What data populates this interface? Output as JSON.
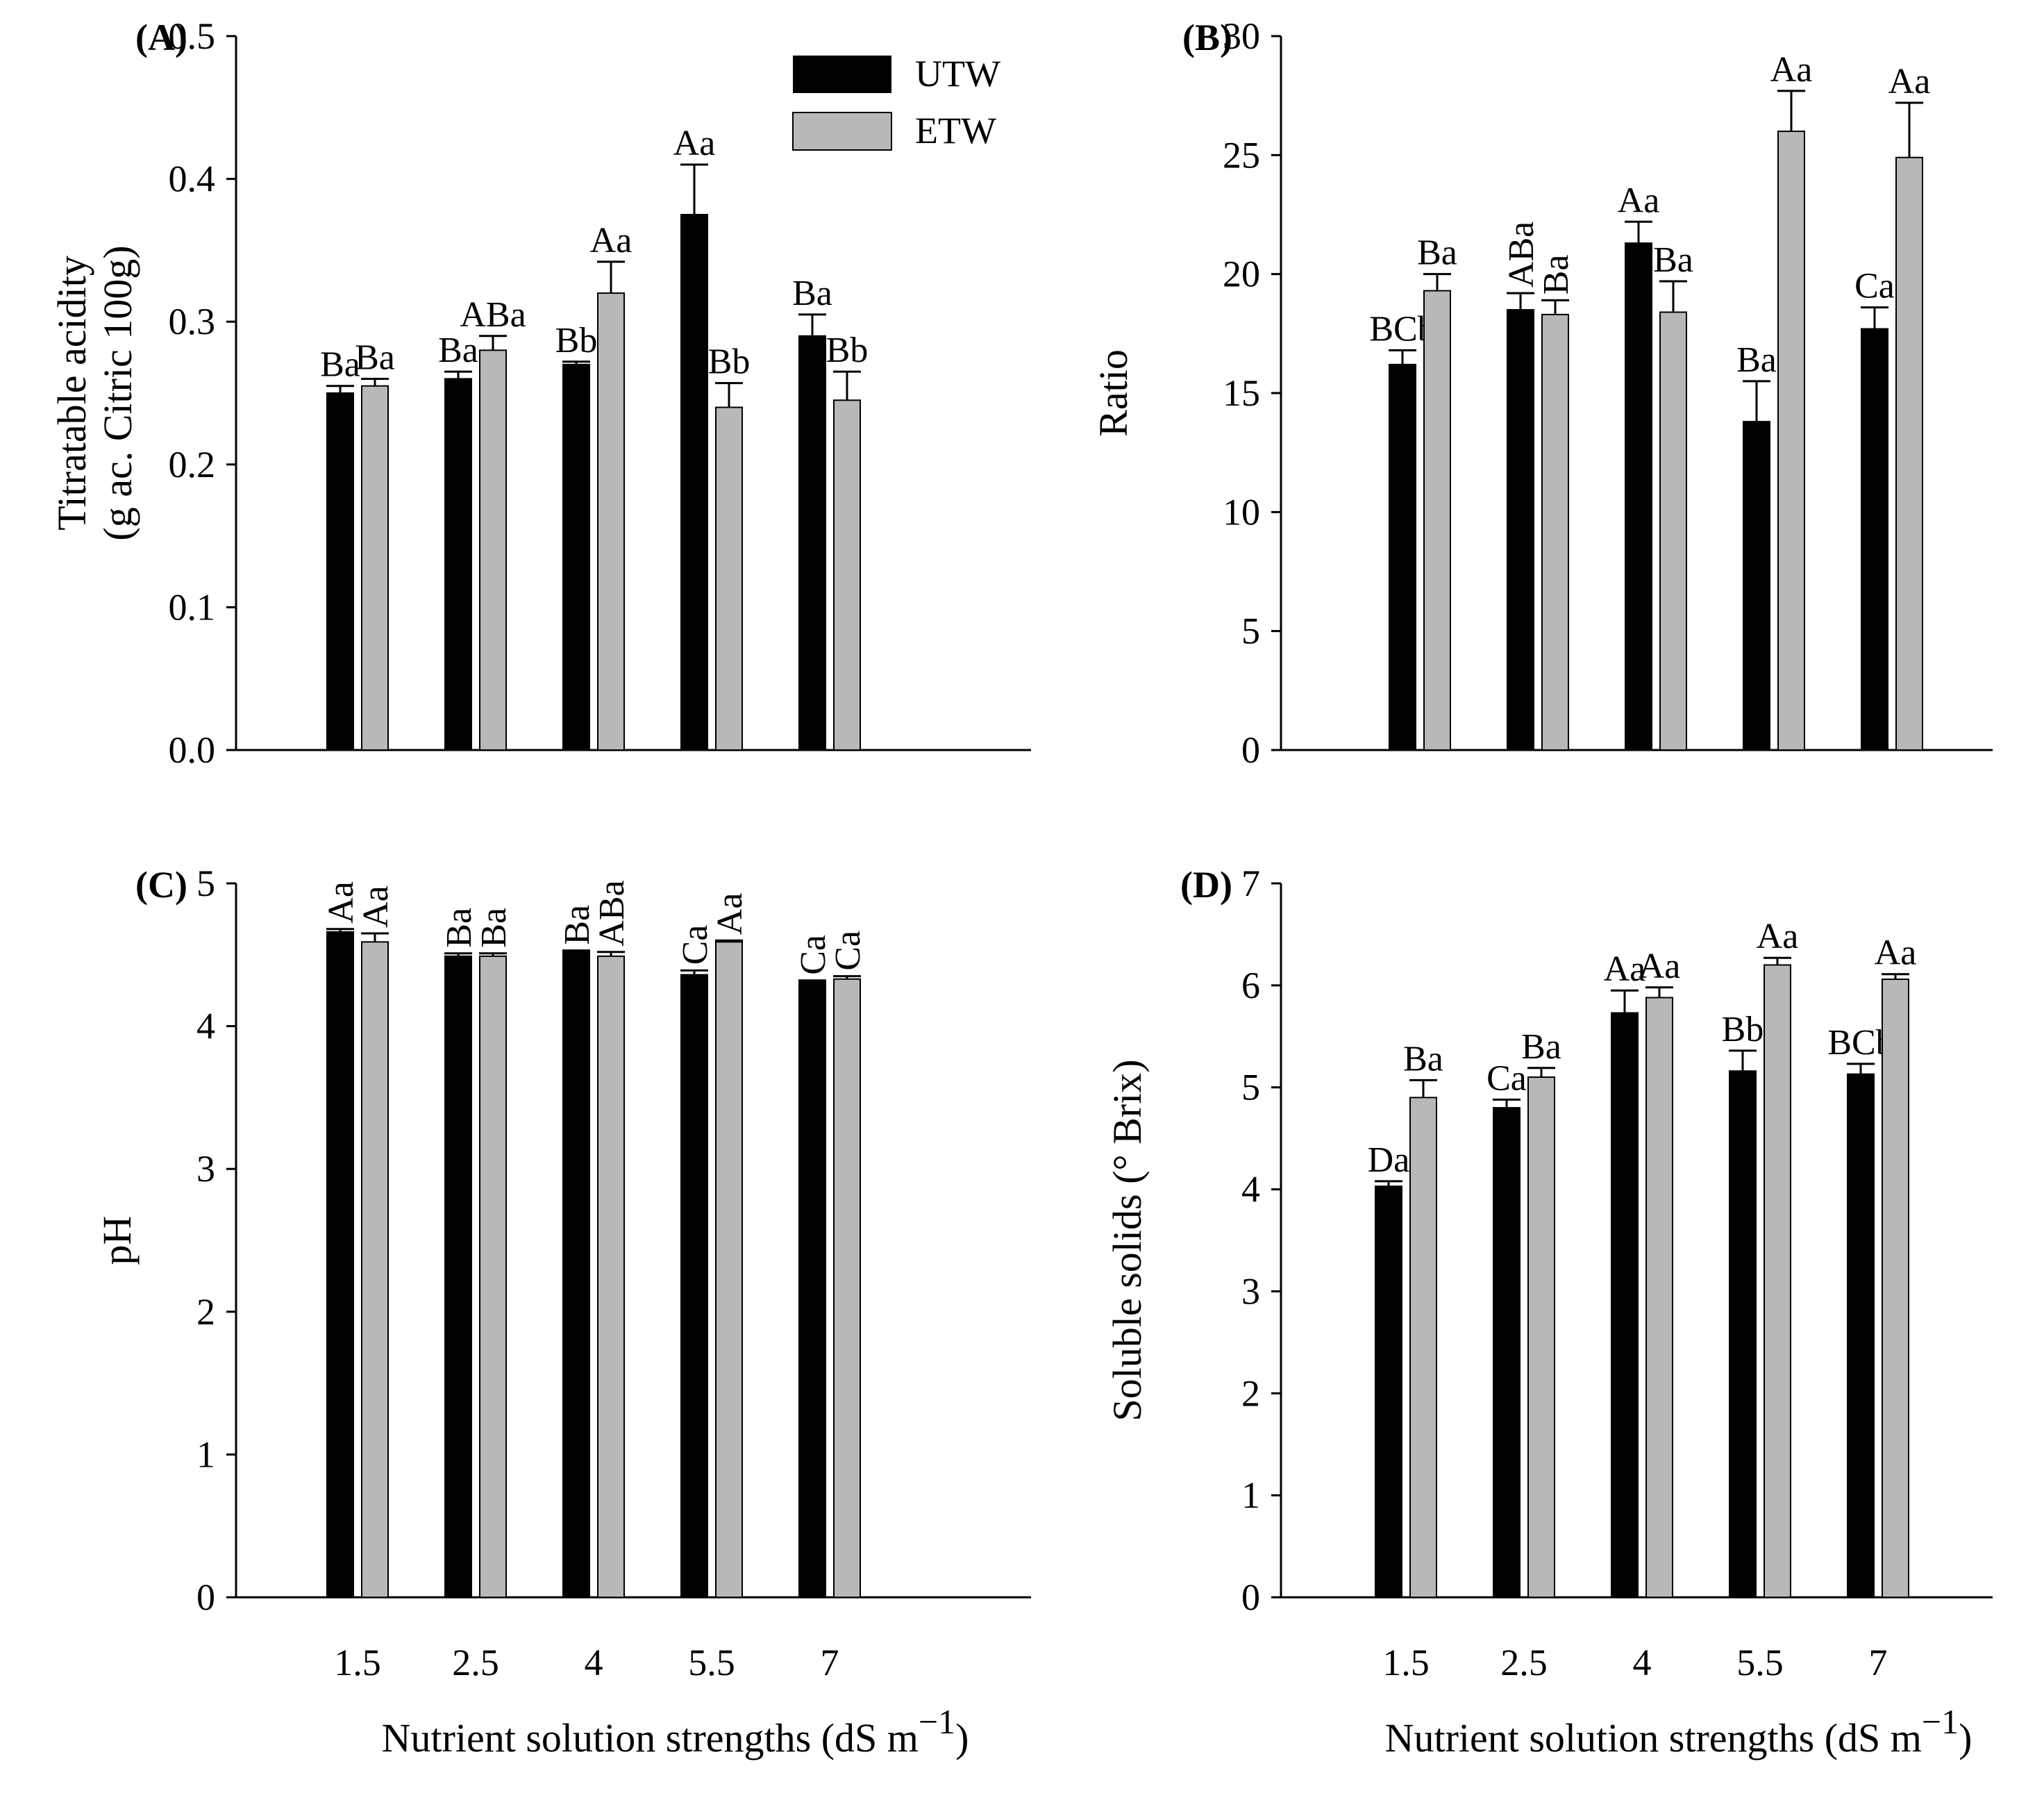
{
  "legend": [
    {
      "name": "UTW",
      "color": "#000000"
    },
    {
      "name": "ETW",
      "color": "#b8b8b8"
    }
  ],
  "chart_data": [
    {
      "panel_label": "(A)",
      "type": "bar",
      "categories": [
        "1.5",
        "2.5",
        "4",
        "5.5",
        "7"
      ],
      "ylabel": [
        "Titratable acidity",
        "(g ac. Citric 100g)"
      ],
      "xlabel": "",
      "ylim": [
        0,
        0.5
      ],
      "yticks": [
        "0.0",
        "0.1",
        "0.2",
        "0.3",
        "0.4",
        "0.5"
      ],
      "series": [
        {
          "name": "UTW",
          "color": "#000000",
          "values": [
            0.25,
            0.26,
            0.27,
            0.375,
            0.29
          ],
          "errors": [
            0.005,
            0.005,
            0.002,
            0.035,
            0.015
          ],
          "labels": [
            "Ba",
            "Ba",
            "Bb",
            "Aa",
            "Ba"
          ]
        },
        {
          "name": "ETW",
          "color": "#b8b8b8",
          "values": [
            0.255,
            0.28,
            0.32,
            0.24,
            0.245
          ],
          "errors": [
            0.005,
            0.01,
            0.022,
            0.017,
            0.02
          ],
          "labels": [
            "Ba",
            "ABa",
            "Aa",
            "Bb",
            "Bb"
          ]
        }
      ],
      "show_xticks": false
    },
    {
      "panel_label": "(B)",
      "type": "bar",
      "categories": [
        "1.5",
        "2.5",
        "4",
        "5.5",
        "7"
      ],
      "ylabel": [
        "Ratio"
      ],
      "xlabel": "",
      "ylim": [
        0,
        30
      ],
      "yticks": [
        "0",
        "5",
        "10",
        "15",
        "20",
        "25",
        "30"
      ],
      "series": [
        {
          "name": "UTW",
          "color": "#000000",
          "values": [
            16.2,
            18.5,
            21.3,
            13.8,
            17.7
          ],
          "errors": [
            0.6,
            0.7,
            0.9,
            1.7,
            0.9
          ],
          "labels": [
            "BCb",
            "ABa",
            "Aa",
            "Ba",
            "Ca"
          ]
        },
        {
          "name": "ETW",
          "color": "#b8b8b8",
          "values": [
            19.3,
            18.3,
            18.4,
            26.0,
            24.9
          ],
          "errors": [
            0.7,
            0.6,
            1.3,
            1.7,
            2.3
          ],
          "labels": [
            "Ba",
            "Ba",
            "Ba",
            "Aa",
            "Aa"
          ]
        }
      ],
      "show_xticks": false
    },
    {
      "panel_label": "(C)",
      "type": "bar",
      "categories": [
        "1.5",
        "2.5",
        "4",
        "5.5",
        "7"
      ],
      "ylabel": [
        "pH"
      ],
      "xlabel": "Nutrient solution strengths  (dS m",
      "xlabel_sup": "−1",
      "xlabel_end": ")",
      "ylim": [
        0,
        5
      ],
      "yticks": [
        "0",
        "1",
        "2",
        "3",
        "4",
        "5"
      ],
      "series": [
        {
          "name": "UTW",
          "color": "#000000",
          "values": [
            4.66,
            4.49,
            4.52,
            4.36,
            4.31
          ],
          "errors": [
            0.02,
            0.02,
            0.01,
            0.03,
            0.01
          ],
          "labels": [
            "Aa",
            "Ba",
            "Ba",
            "Ca",
            "Ca"
          ]
        },
        {
          "name": "ETW",
          "color": "#b8b8b8",
          "values": [
            4.59,
            4.49,
            4.49,
            4.59,
            4.33
          ],
          "errors": [
            0.06,
            0.02,
            0.03,
            0.01,
            0.02
          ],
          "labels": [
            "Aa",
            "Ba",
            "ABa",
            "Aa",
            "Ca"
          ]
        }
      ],
      "show_xticks": true
    },
    {
      "panel_label": "(D)",
      "type": "bar",
      "categories": [
        "1.5",
        "2.5",
        "4",
        "5.5",
        "7"
      ],
      "ylabel": [
        "Soluble solids  (° Brix)"
      ],
      "xlabel": "Nutrient solution strengths  (dS m",
      "xlabel_sup": "−1",
      "xlabel_end": ")",
      "ylim": [
        0,
        7
      ],
      "yticks": [
        "0",
        "1",
        "2",
        "3",
        "4",
        "5",
        "6",
        "7"
      ],
      "series": [
        {
          "name": "UTW",
          "color": "#000000",
          "values": [
            4.03,
            4.8,
            5.73,
            5.16,
            5.13
          ],
          "errors": [
            0.05,
            0.08,
            0.22,
            0.2,
            0.1
          ],
          "labels": [
            "Da",
            "Ca",
            "Aa",
            "Bb",
            "BCb"
          ]
        },
        {
          "name": "ETW",
          "color": "#b8b8b8",
          "values": [
            4.9,
            5.1,
            5.88,
            6.2,
            6.06
          ],
          "errors": [
            0.17,
            0.09,
            0.1,
            0.07,
            0.05
          ],
          "labels": [
            "Ba",
            "Ba",
            "Aa",
            "Aa",
            "Aa"
          ]
        }
      ],
      "show_xticks": true
    }
  ]
}
